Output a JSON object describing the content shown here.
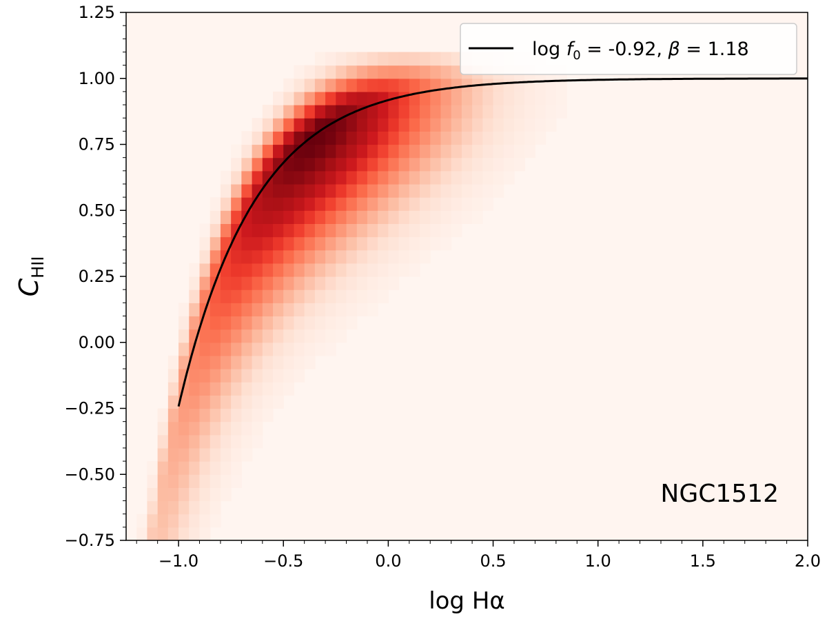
{
  "chart_data": {
    "type": "heatmap",
    "title": "",
    "xlabel": "log Hα",
    "ylabel": "C",
    "ylabel_sub": "HII",
    "xlim": [
      -1.25,
      2.0
    ],
    "ylim": [
      -0.75,
      1.25
    ],
    "x_ticks": [
      -1.0,
      -0.5,
      0.0,
      0.5,
      1.0,
      1.5,
      2.0
    ],
    "x_tick_labels": [
      "−1.0",
      "−0.5",
      "0.0",
      "0.5",
      "1.0",
      "1.5",
      "2.0"
    ],
    "y_ticks": [
      -0.75,
      -0.5,
      -0.25,
      0.0,
      0.25,
      0.5,
      0.75,
      1.0,
      1.25
    ],
    "y_tick_labels": [
      "−0.75",
      "−0.50",
      "−0.25",
      "0.00",
      "0.25",
      "0.50",
      "0.75",
      "1.00",
      "1.25"
    ],
    "annotation": "NGC1512",
    "colormap": "Reds",
    "background_color": "#fff5f0",
    "heatmap_bin_width": [
      0.05,
      0.05
    ],
    "density_model": {
      "description_of_visible_ridge": "density concentrated along fitted curve, peak near log Hα -0.6 to 0.2",
      "x_range": [
        -1.2,
        2.0
      ],
      "y_range": [
        -0.75,
        1.1
      ]
    },
    "series": [
      {
        "name": "log f0 = -0.92, β = 1.18",
        "type": "line",
        "color": "#000000",
        "log_f0": -0.92,
        "beta": 1.18,
        "x_start": -1.0,
        "x_end": 2.0
      }
    ],
    "legend": {
      "position": "top-right",
      "text_prefix": "log ",
      "f_symbol": "f",
      "f_sub": "0",
      "eq_1": " = -0.92, ",
      "beta_symbol": "β",
      "eq_2": " = 1.18"
    },
    "grid": false
  }
}
